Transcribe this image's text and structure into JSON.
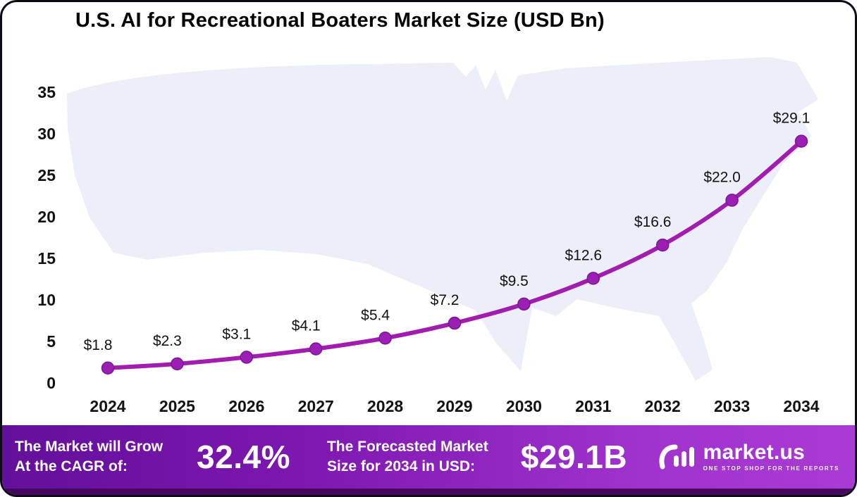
{
  "chart_data": {
    "type": "line",
    "title": "U.S. AI for Recreational Boaters Market Size (USD Bn)",
    "x_labels": [
      "2024",
      "2025",
      "2026",
      "2027",
      "2028",
      "2029",
      "2030",
      "2031",
      "2032",
      "2033",
      "2034"
    ],
    "values": [
      1.8,
      2.3,
      3.1,
      4.1,
      5.4,
      7.2,
      9.5,
      12.6,
      16.6,
      22.0,
      29.1
    ],
    "point_labels": [
      "$1.8",
      "$2.3",
      "$3.1",
      "$4.1",
      "$5.4",
      "$7.2",
      "$9.5",
      "$12.6",
      "$16.6",
      "$22.0",
      "$29.1"
    ],
    "yticks": [
      0,
      5,
      10,
      15,
      20,
      25,
      30,
      35
    ],
    "ylim": [
      0,
      37
    ],
    "xlabel": "",
    "ylabel": "",
    "grid": false,
    "legend": "none",
    "line_color": "#A21CAF",
    "marker_color": "#9B1FB5",
    "marker_stroke": "#7A1792",
    "background_motif": "us-map-silhouette",
    "map_fill": "#ECEFF9"
  },
  "banner": {
    "cagr_label_line1": "The Market will Grow",
    "cagr_label_line2": "At the CAGR of:",
    "cagr_value": "32.4%",
    "forecast_label_line1": "The Forecasted Market",
    "forecast_label_line2": "Size for 2034 in USD:",
    "forecast_value": "$29.1B",
    "brand": "market.us",
    "brand_tagline": "ONE STOP SHOP FOR THE REPORTS",
    "banner_gradient_start": "#640f9b",
    "banner_gradient_end": "#aa3ad4",
    "banner_footer_strip": "#45085e"
  }
}
